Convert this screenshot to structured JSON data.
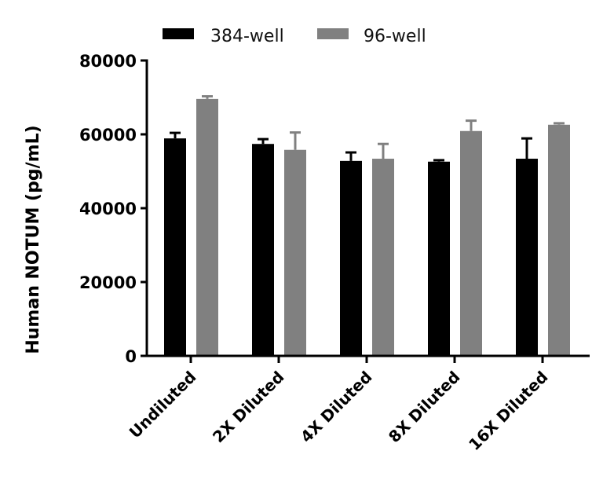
{
  "chart_data": {
    "type": "bar",
    "title": "",
    "xlabel": "",
    "ylabel": "Human NOTUM (pg/mL)",
    "ylim": [
      0,
      80000
    ],
    "yticks": [
      0,
      20000,
      40000,
      60000,
      80000
    ],
    "ytick_labels": [
      "0",
      "20000",
      "40000",
      "60000",
      "80000"
    ],
    "grid": false,
    "legend_position": "top",
    "categories": [
      "Undiluted",
      "2X Diluted",
      "4X Diluted",
      "8X Diluted",
      "16X Diluted"
    ],
    "series": [
      {
        "name": "384-well",
        "color": "#000000",
        "values": [
          58900,
          57400,
          52800,
          52600,
          53400
        ],
        "errors": [
          1500,
          1300,
          2300,
          400,
          5500
        ]
      },
      {
        "name": "96-well",
        "color": "#808080",
        "values": [
          69600,
          55800,
          53400,
          60900,
          62600
        ],
        "errors": [
          700,
          4700,
          4000,
          2800,
          400
        ]
      }
    ]
  }
}
